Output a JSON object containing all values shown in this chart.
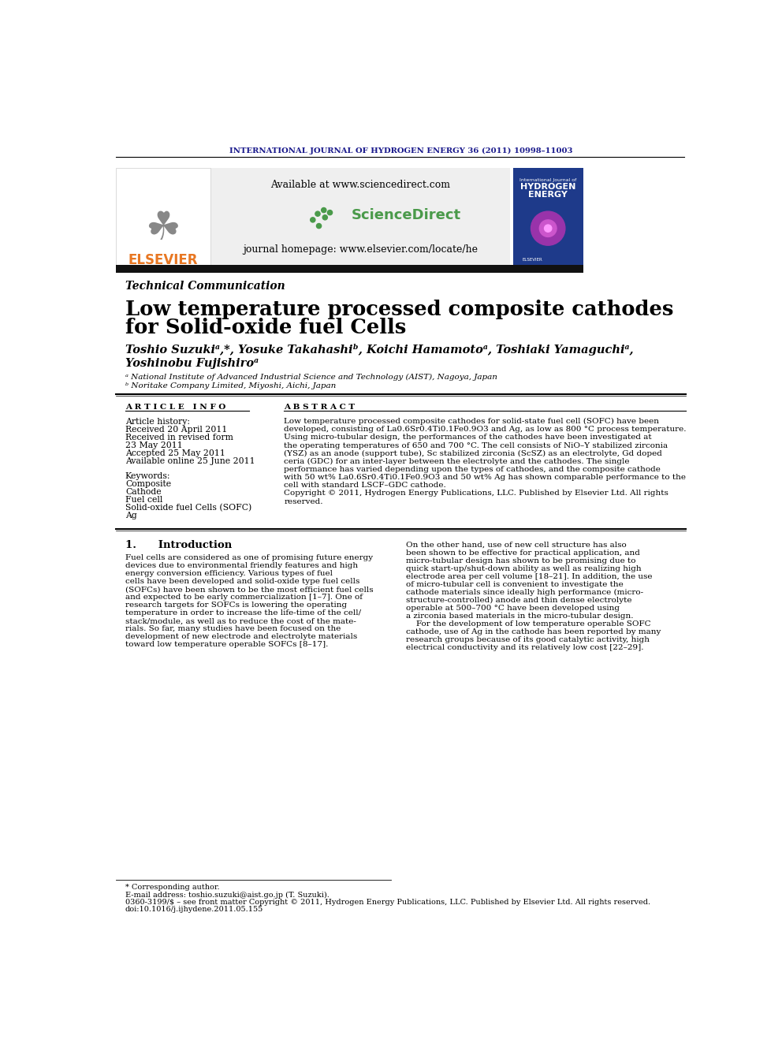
{
  "journal_header": "INTERNATIONAL JOURNAL OF HYDROGEN ENERGY 36 (2011) 10998–11003",
  "available_text": "Available at www.sciencedirect.com",
  "journal_homepage": "journal homepage: www.elsevier.com/locate/he",
  "section_label": "Technical Communication",
  "title_line1": "Low temperature processed composite cathodes",
  "title_line2": "for Solid-oxide fuel Cells",
  "authors_line1": "Toshio Suzukiᵃ,*, Yosuke Takahashiᵇ, Koichi Hamamotoᵃ, Toshiaki Yamaguchiᵃ,",
  "authors_line2": "Yoshinobu Fujishiroᵃ",
  "affil_a": "ᵃ National Institute of Advanced Industrial Science and Technology (AIST), Nagoya, Japan",
  "affil_b": "ᵇ Noritake Company Limited, Miyoshi, Aichi, Japan",
  "article_info_header": "ARTICLE INFO",
  "abstract_header": "ABSTRACT",
  "article_history_label": "Article history:",
  "received1": "Received 20 April 2011",
  "revised": "Received in revised form",
  "date_revised": "23 May 2011",
  "accepted": "Accepted 25 May 2011",
  "available_online": "Available online 25 June 2011",
  "keywords_label": "Keywords:",
  "keywords": [
    "Composite",
    "Cathode",
    "Fuel cell",
    "Solid-oxide fuel Cells (SOFC)",
    "Ag"
  ],
  "abstract_text": "Low temperature processed composite cathodes for solid-state fuel cell (SOFC) have been\ndeveloped, consisting of La0.6Sr0.4Ti0.1Fe0.9O3 and Ag, as low as 800 °C process temperature.\nUsing micro-tubular design, the performances of the cathodes have been investigated at\nthe operating temperatures of 650 and 700 °C. The cell consists of NiO–Y stabilized zirconia\n(YSZ) as an anode (support tube), Sc stabilized zirconia (ScSZ) as an electrolyte, Gd doped\nceria (GDC) for an inter-layer between the electrolyte and the cathodes. The single\nperformance has varied depending upon the types of cathodes, and the composite cathode\nwith 50 wt% La0.6Sr0.4Ti0.1Fe0.9O3 and 50 wt% Ag has shown comparable performance to the\ncell with standard LSCF–GDC cathode.\nCopyright © 2011, Hydrogen Energy Publications, LLC. Published by Elsevier Ltd. All rights\nreserved.",
  "intro_header": "1.      Introduction",
  "intro_text1": "Fuel cells are considered as one of promising future energy\ndevices due to environmental friendly features and high\nenergy conversion efficiency. Various types of fuel\ncells have been developed and solid-oxide type fuel cells\n(SOFCs) have been shown to be the most efficient fuel cells\nand expected to be early commercialization [1–7]. One of\nresearch targets for SOFCs is lowering the operating\ntemperature in order to increase the life-time of the cell/\nstack/module, as well as to reduce the cost of the mate-\nrials. So far, many studies have been focused on the\ndevelopment of new electrode and electrolyte materials\ntoward low temperature operable SOFCs [8–17].",
  "intro_text2": "On the other hand, use of new cell structure has also\nbeen shown to be effective for practical application, and\nmicro-tubular design has shown to be promising due to\nquick start-up/shut-down ability as well as realizing high\nelectrode area per cell volume [18–21]. In addition, the use\nof micro-tubular cell is convenient to investigate the\ncathode materials since ideally high performance (micro-\nstructure-controlled) anode and thin dense electrolyte\noperable at 500–700 °C have been developed using\na zirconia based materials in the micro-tubular design.\n    For the development of low temperature operable SOFC\ncathode, use of Ag in the cathode has been reported by many\nresearch groups because of its good catalytic activity, high\nelectrical conductivity and its relatively low cost [22–29].",
  "footnote_corresponding": "* Corresponding author.",
  "footnote_email": "E-mail address: toshio.suzuki@aist.go.jp (T. Suzuki).",
  "footnote_issn": "0360-3199/$ – see front matter Copyright © 2011, Hydrogen Energy Publications, LLC. Published by Elsevier Ltd. All rights reserved.",
  "footnote_doi": "doi:10.1016/j.ijhydene.2011.05.155",
  "header_color": "#1a1a8c",
  "elsevier_color": "#e87722",
  "bg_gray": "#efefef",
  "black_bar_color": "#111111",
  "sciencedirect_green": "#4a9a4a",
  "he_cover_blue": "#1e3a8a"
}
